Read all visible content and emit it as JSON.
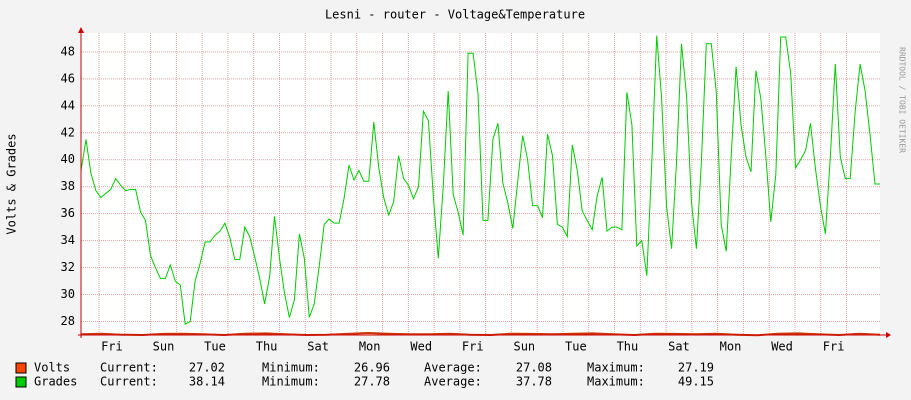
{
  "chart_data": {
    "type": "line",
    "title": "Lesni - router - Voltage&Temperature",
    "y_label": "Volts & Grades",
    "side_text": "RRDTOOL / TOBI OETIKER",
    "xlim": [
      0,
      31
    ],
    "xticks": [
      {
        "value": 1.2,
        "label": "Fri"
      },
      {
        "value": 3.2,
        "label": "Sun"
      },
      {
        "value": 5.2,
        "label": "Tue"
      },
      {
        "value": 7.2,
        "label": "Thu"
      },
      {
        "value": 9.2,
        "label": "Sat"
      },
      {
        "value": 11.2,
        "label": "Mon"
      },
      {
        "value": 13.2,
        "label": "Wed"
      },
      {
        "value": 15.2,
        "label": "Fri"
      },
      {
        "value": 17.2,
        "label": "Sun"
      },
      {
        "value": 19.2,
        "label": "Tue"
      },
      {
        "value": 21.2,
        "label": "Thu"
      },
      {
        "value": 23.2,
        "label": "Sat"
      },
      {
        "value": 25.2,
        "label": "Mon"
      },
      {
        "value": 27.2,
        "label": "Wed"
      },
      {
        "value": 29.2,
        "label": "Fri"
      }
    ],
    "ylim": [
      27,
      49.4
    ],
    "yticks": [
      28,
      30,
      32,
      34,
      36,
      38,
      40,
      42,
      44,
      46,
      48
    ],
    "grid": true,
    "stat_labels": [
      "Current:",
      "Minimum:",
      "Average:",
      "Maximum:"
    ],
    "series": [
      {
        "name": "Volts",
        "color": "#cc3300",
        "swatch": "#ff4400",
        "stats": [
          27.02,
          26.96,
          27.08,
          27.19
        ],
        "values": [
          27.05,
          27.1,
          27.02,
          27.0,
          27.08,
          27.1,
          27.05,
          27.0,
          27.1,
          27.12,
          27.05,
          27.0,
          27.02,
          27.08,
          27.15,
          27.1,
          27.05,
          27.06,
          27.1,
          27.02,
          27.0,
          27.1,
          27.08,
          27.05,
          27.1,
          27.12,
          27.05,
          27.0,
          27.1,
          27.08,
          27.05,
          27.1,
          27.02,
          26.98,
          27.1,
          27.12,
          27.05,
          27.0,
          27.1,
          27.02
        ]
      },
      {
        "name": "Grades",
        "color": "#00cc00",
        "swatch": "#00cc00",
        "stats": [
          38.14,
          27.78,
          37.78,
          49.15
        ],
        "values": [
          39.2,
          41.5,
          39,
          37.7,
          37.2,
          37.5,
          37.8,
          38.6,
          38.1,
          37.7,
          37.8,
          37.8,
          36.1,
          35.5,
          32.9,
          32,
          31.2,
          31.2,
          32.2,
          31,
          30.7,
          27.8,
          28,
          31,
          32.3,
          33.9,
          33.9,
          34.4,
          34.7,
          35.3,
          34.2,
          32.6,
          32.6,
          35,
          34.3,
          32.8,
          31.2,
          29.3,
          31.3,
          35.8,
          32.7,
          30.1,
          28.3,
          29.6,
          34.5,
          32.7,
          28.3,
          29.3,
          32.1,
          35.2,
          35.6,
          35.3,
          35.3,
          37.1,
          39.6,
          38.5,
          39.2,
          38.4,
          38.4,
          42.8,
          39.4,
          37.2,
          35.9,
          36.9,
          40.3,
          38.6,
          38.1,
          37.1,
          38,
          43.6,
          42.9,
          37.2,
          32.7,
          38.1,
          45.1,
          37.4,
          36.1,
          34.4,
          47.9,
          47.9,
          44.9,
          35.5,
          35.5,
          41.5,
          42.7,
          38.3,
          36.8,
          34.9,
          38.4,
          41.8,
          40,
          36.6,
          36.6,
          35.7,
          41.9,
          40.3,
          35.2,
          35,
          34.3,
          41.1,
          39.2,
          36.2,
          35.5,
          34.8,
          37.3,
          38.7,
          34.7,
          35,
          35,
          34.8,
          45,
          42.6,
          33.6,
          34,
          31.4,
          39.6,
          49.2,
          44.6,
          36.5,
          33.4,
          39.8,
          48.6,
          44.8,
          36.9,
          33.4,
          39.7,
          48.6,
          48.6,
          45.1,
          35.2,
          33.2,
          40.1,
          46.9,
          42.6,
          40.2,
          39.1,
          46.6,
          44.5,
          40.2,
          35.4,
          38.9,
          49.1,
          49.1,
          46.4,
          39.4,
          40,
          40.7,
          42.7,
          39.3,
          36.6,
          34.5,
          40.3,
          47.1,
          40.2,
          38.6,
          38.6,
          43.6,
          47.1,
          45.1,
          41.8,
          38.2,
          38.2
        ]
      }
    ]
  }
}
